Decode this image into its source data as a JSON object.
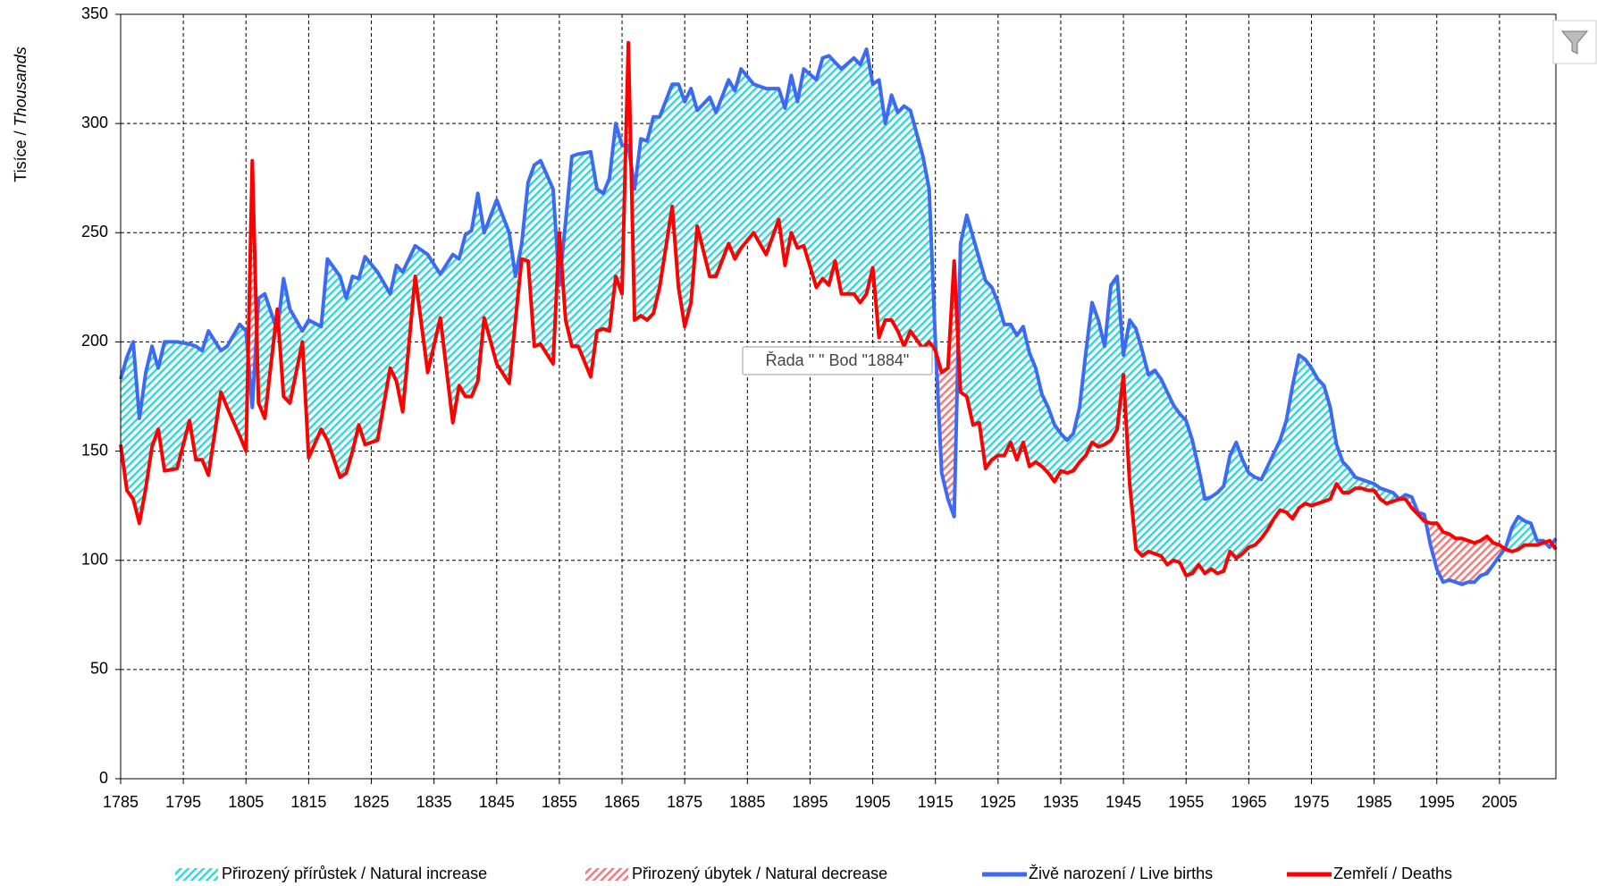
{
  "chart_data": {
    "type": "line",
    "y_label": {
      "cs": "Tisíce /",
      "en": "Thousands"
    },
    "annotation": "Řada \" \" Bod \"1884\"",
    "xlim": [
      1785,
      2014
    ],
    "xticks": [
      1785,
      1795,
      1805,
      1815,
      1825,
      1835,
      1845,
      1855,
      1865,
      1875,
      1885,
      1895,
      1905,
      1915,
      1925,
      1935,
      1945,
      1955,
      1965,
      1975,
      1985,
      1995,
      2005
    ],
    "ylim": [
      0,
      350
    ],
    "yticks": [
      0,
      50,
      100,
      150,
      200,
      250,
      300,
      350
    ],
    "grid": true,
    "legend": "bottom",
    "areas": [
      {
        "name": "Přirozený přírůstek / Natural increase",
        "color": "#33d6d6"
      },
      {
        "name": "Přirozený úbytek / Natural decrease",
        "color": "#f07a7a"
      }
    ],
    "x": [
      1785,
      1786,
      1787,
      1788,
      1789,
      1790,
      1791,
      1792,
      1794,
      1796,
      1797,
      1798,
      1799,
      1801,
      1802,
      1804,
      1805,
      1806,
      1807,
      1808,
      1810,
      1811,
      1812,
      1814,
      1815,
      1817,
      1818,
      1820,
      1821,
      1822,
      1823,
      1824,
      1826,
      1828,
      1829,
      1830,
      1832,
      1834,
      1836,
      1838,
      1839,
      1840,
      1841,
      1842,
      1843,
      1845,
      1847,
      1848,
      1849,
      1850,
      1851,
      1852,
      1854,
      1855,
      1856,
      1857,
      1858,
      1860,
      1861,
      1862,
      1863,
      1864,
      1865,
      1866,
      1867,
      1868,
      1869,
      1870,
      1871,
      1873,
      1874,
      1875,
      1876,
      1877,
      1879,
      1880,
      1882,
      1883,
      1884,
      1886,
      1888,
      1890,
      1891,
      1892,
      1893,
      1894,
      1896,
      1897,
      1898,
      1899,
      1900,
      1902,
      1903,
      1904,
      1905,
      1906,
      1907,
      1908,
      1909,
      1910,
      1911,
      1913,
      1914,
      1915,
      1916,
      1917,
      1918,
      1919,
      1920,
      1921,
      1922,
      1923,
      1924,
      1925,
      1926,
      1927,
      1928,
      1929,
      1930,
      1931,
      1932,
      1933,
      1934,
      1935,
      1936,
      1937,
      1938,
      1939,
      1940,
      1941,
      1942,
      1943,
      1944,
      1945,
      1946,
      1947,
      1948,
      1949,
      1950,
      1951,
      1952,
      1953,
      1954,
      1955,
      1956,
      1957,
      1958,
      1959,
      1960,
      1961,
      1962,
      1963,
      1964,
      1965,
      1966,
      1967,
      1968,
      1969,
      1970,
      1971,
      1972,
      1973,
      1974,
      1975,
      1976,
      1977,
      1978,
      1979,
      1980,
      1981,
      1982,
      1983,
      1984,
      1985,
      1986,
      1987,
      1988,
      1989,
      1990,
      1991,
      1992,
      1993,
      1994,
      1995,
      1996,
      1997,
      1998,
      1999,
      2000,
      2001,
      2002,
      2003,
      2004,
      2005,
      2006,
      2007,
      2008,
      2009,
      2010,
      2011,
      2012,
      2013,
      2014
    ],
    "series": [
      {
        "name": "Živě narození / Live births",
        "color": "#3d6af2",
        "values": [
          183,
          193,
          200,
          165,
          186,
          198,
          188,
          200,
          200,
          199,
          198,
          196,
          205,
          196,
          198,
          208,
          205,
          170,
          220,
          222,
          205,
          229,
          215,
          205,
          210,
          207,
          238,
          230,
          220,
          230,
          229,
          239,
          232,
          222,
          235,
          232,
          244,
          240,
          231,
          240,
          238,
          249,
          251,
          268,
          250,
          265,
          250,
          230,
          245,
          273,
          281,
          283,
          270,
          226,
          255,
          285,
          286,
          287,
          270,
          268,
          275,
          300,
          290,
          290,
          270,
          293,
          292,
          303,
          303,
          318,
          318,
          310,
          316,
          306,
          312,
          305,
          320,
          315,
          325,
          318,
          316,
          316,
          307,
          322,
          310,
          325,
          320,
          330,
          331,
          328,
          325,
          330,
          327,
          334,
          318,
          320,
          300,
          313,
          305,
          308,
          306,
          285,
          270,
          200,
          140,
          128,
          120,
          245,
          258,
          248,
          238,
          228,
          225,
          218,
          208,
          208,
          203,
          207,
          195,
          188,
          176,
          170,
          162,
          158,
          155,
          158,
          170,
          195,
          218,
          210,
          198,
          226,
          230,
          194,
          210,
          206,
          196,
          185,
          187,
          183,
          177,
          171,
          167,
          164,
          155,
          142,
          128,
          129,
          131,
          134,
          148,
          154,
          146,
          140,
          138,
          137,
          143,
          149,
          155,
          164,
          180,
          194,
          192,
          188,
          183,
          180,
          170,
          153,
          145,
          142,
          138,
          137,
          136,
          135,
          133,
          132,
          131,
          128,
          130,
          129,
          122,
          121,
          107,
          96,
          90,
          91,
          90,
          89,
          90,
          90,
          93,
          94,
          98,
          102,
          106,
          115,
          120,
          118,
          117,
          109,
          109,
          106,
          110
        ]
      },
      {
        "name": "Zemřelí / Deaths",
        "color": "#ff0000",
        "values": [
          153,
          132,
          128,
          117,
          133,
          152,
          160,
          141,
          142,
          164,
          146,
          146,
          139,
          177,
          170,
          157,
          150,
          283,
          172,
          165,
          215,
          175,
          172,
          200,
          147,
          160,
          155,
          138,
          140,
          150,
          162,
          153,
          155,
          188,
          182,
          168,
          230,
          186,
          211,
          163,
          180,
          175,
          175,
          182,
          211,
          190,
          181,
          210,
          238,
          237,
          198,
          199,
          190,
          250,
          210,
          198,
          198,
          184,
          205,
          206,
          205,
          230,
          222,
          337,
          210,
          212,
          210,
          213,
          225,
          262,
          225,
          207,
          218,
          253,
          230,
          230,
          245,
          238,
          243,
          250,
          240,
          256,
          235,
          250,
          243,
          244,
          225,
          229,
          226,
          237,
          222,
          222,
          218,
          222,
          234,
          202,
          210,
          210,
          205,
          198,
          205,
          197,
          200,
          196,
          186,
          188,
          237,
          177,
          175,
          162,
          163,
          142,
          146,
          148,
          148,
          154,
          146,
          154,
          143,
          145,
          143,
          140,
          136,
          141,
          140,
          141,
          145,
          148,
          154,
          152,
          153,
          155,
          160,
          185,
          135,
          105,
          102,
          104,
          103,
          102,
          98,
          100,
          99,
          93,
          94,
          98,
          94,
          96,
          94,
          95,
          104,
          101,
          103,
          106,
          107,
          110,
          114,
          119,
          123,
          122,
          119,
          124,
          126,
          125,
          126,
          127,
          128,
          135,
          131,
          131,
          133,
          133,
          132,
          132,
          128,
          126,
          127,
          128,
          128,
          124,
          121,
          118,
          117,
          117,
          113,
          112,
          110,
          110,
          109,
          108,
          109,
          111,
          108,
          107,
          105,
          104,
          105,
          107,
          107,
          107,
          108,
          109,
          105
        ]
      }
    ]
  }
}
